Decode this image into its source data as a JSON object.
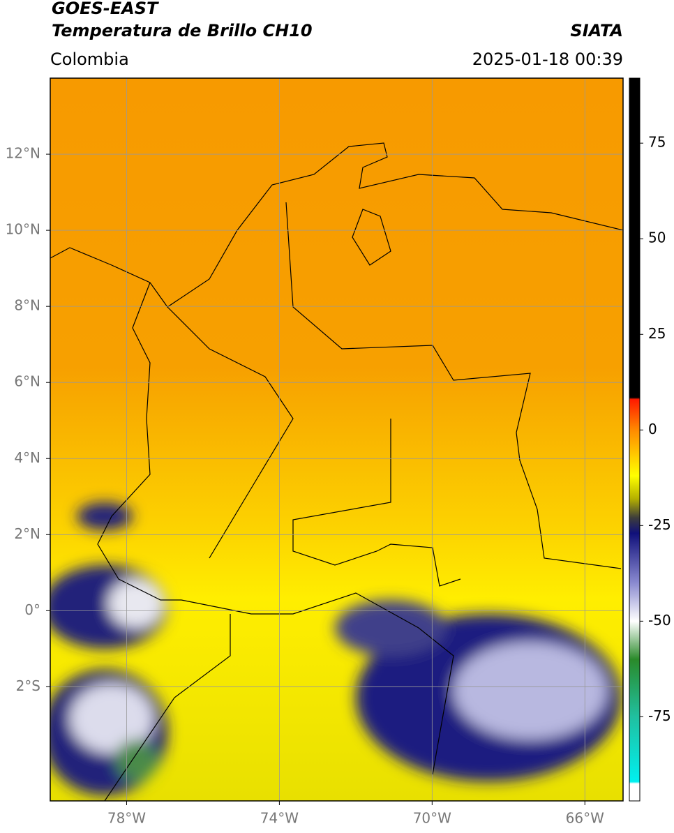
{
  "header": {
    "title_line1": "GOES-EAST",
    "title_line2": "Temperatura de Brillo CH10",
    "source": "SIATA",
    "region": "Colombia",
    "datetime": "2025-01-18 00:39"
  },
  "map": {
    "xlim": [
      -80,
      -65
    ],
    "ylim": [
      -5,
      14
    ],
    "xticks": [
      {
        "value": -78,
        "label": "78°W"
      },
      {
        "value": -74,
        "label": "74°W"
      },
      {
        "value": -70,
        "label": "70°W"
      },
      {
        "value": -66,
        "label": "66°W"
      }
    ],
    "yticks": [
      {
        "value": 12,
        "label": "12°N"
      },
      {
        "value": 10,
        "label": "10°N"
      },
      {
        "value": 8,
        "label": "8°N"
      },
      {
        "value": 6,
        "label": "6°N"
      },
      {
        "value": 4,
        "label": "4°N"
      },
      {
        "value": 2,
        "label": "2°N"
      },
      {
        "value": 0,
        "label": "0°"
      },
      {
        "value": -2,
        "label": "2°S"
      }
    ]
  },
  "colorbar": {
    "lim": [
      -97,
      92
    ],
    "ticks": [
      75,
      50,
      25,
      0,
      -25,
      -50,
      -75
    ],
    "stops": [
      {
        "value": 92,
        "color": "#000000"
      },
      {
        "value": 8.5,
        "color": "#000000"
      },
      {
        "value": 8,
        "color": "#ff1a00"
      },
      {
        "value": 0,
        "color": "#ff8a00"
      },
      {
        "value": -12,
        "color": "#ffff00"
      },
      {
        "value": -18,
        "color": "#b4b000"
      },
      {
        "value": -23,
        "color": "#3c3c3c"
      },
      {
        "value": -27,
        "color": "#10107a"
      },
      {
        "value": -40,
        "color": "#8a8ad0"
      },
      {
        "value": -50,
        "color": "#ffffff"
      },
      {
        "value": -60,
        "color": "#2a8a2a"
      },
      {
        "value": -75,
        "color": "#20c0a0"
      },
      {
        "value": -92,
        "color": "#00f0f0"
      },
      {
        "value": -92.5,
        "color": "#ffffff"
      },
      {
        "value": -97,
        "color": "#ffffff"
      }
    ]
  }
}
